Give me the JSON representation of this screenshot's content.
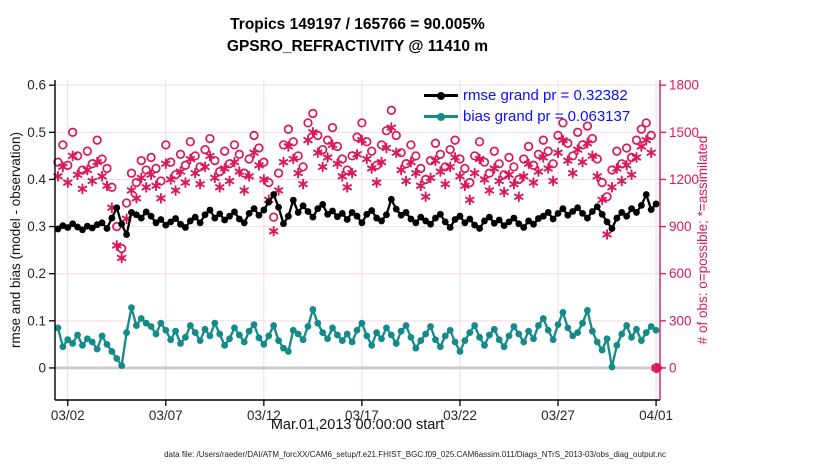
{
  "title": {
    "line1": "Tropics 149197 / 165766 = 90.005%",
    "line2": "GPSRO_REFRACTIVITY @ 11410 m"
  },
  "footer": "data file: /Users/raeder/DAI/ATM_forcXX/CAM6_setup/f.e21.FHIST_BGC.f09_025.CAM6assim.011/Diags_NTrS_2013-03/obs_diag_output.nc",
  "legend": [
    {
      "label": "rmse grand pr = 0.32382",
      "color": "#000000",
      "marker": "filled-circle"
    },
    {
      "label": "bias grand pr = 0.063137",
      "color": "#148a8a",
      "marker": "filled-circle"
    }
  ],
  "colors": {
    "crimson": "#d8195a",
    "teal": "#148a8a",
    "black": "#000000",
    "legend_text": "#0d0dff",
    "grid": "#f4d9e1",
    "zero_line": "#cfc8cb",
    "tick_text": "#262626"
  },
  "chart_data": {
    "type": "line",
    "title": "Tropics 149197 / 165766 = 90.005% | GPSRO_REFRACTIVITY @ 11410 m",
    "xlabel": "Mar.01,2013 00:00:00 start",
    "ylabel_left": "rmse and bias (model - observation)",
    "ylabel_right": "# of obs: o=possible; *=assimilated",
    "xlim": [
      1.35,
      32.2
    ],
    "ylim_left": [
      -0.068,
      0.611
    ],
    "ylim_right": [
      -204,
      1833
    ],
    "grid": true,
    "legend_position": "top-right-inside",
    "xticks": {
      "values": [
        2,
        7,
        12,
        17,
        22,
        27,
        32
      ],
      "labels": [
        "03/02",
        "03/07",
        "03/12",
        "03/17",
        "03/22",
        "03/27",
        "04/01"
      ]
    },
    "yticks_left": {
      "values": [
        0,
        0.1,
        0.2,
        0.3,
        0.4,
        0.5,
        0.6
      ],
      "labels": [
        "0",
        "0.1",
        "0.2",
        "0.3",
        "0.4",
        "0.5",
        "0.6"
      ]
    },
    "yticks_right": {
      "values": [
        0,
        300,
        600,
        900,
        1200,
        1500,
        1800
      ],
      "labels": [
        "0",
        "300",
        "600",
        "900",
        "1200",
        "1500",
        "1800"
      ]
    },
    "x_start": 1.5,
    "x_step": 0.25,
    "x_units": "day of March 2013, 6-hourly bins",
    "zero_line": 0,
    "end_marker": {
      "x": 32.1,
      "value": 0,
      "axis": "right",
      "shape": "diamond",
      "color": "#d8195a"
    },
    "series": [
      {
        "name": "rmse",
        "axis": "left",
        "draw": "line",
        "marker": "filled-circle",
        "color": "#000000",
        "values": [
          0.295,
          0.302,
          0.298,
          0.306,
          0.299,
          0.293,
          0.301,
          0.297,
          0.304,
          0.308,
          0.296,
          0.318,
          0.34,
          0.305,
          0.283,
          0.33,
          0.325,
          0.318,
          0.331,
          0.322,
          0.308,
          0.315,
          0.303,
          0.31,
          0.317,
          0.305,
          0.298,
          0.312,
          0.32,
          0.308,
          0.325,
          0.335,
          0.318,
          0.327,
          0.314,
          0.322,
          0.331,
          0.316,
          0.308,
          0.328,
          0.338,
          0.324,
          0.335,
          0.352,
          0.368,
          0.341,
          0.306,
          0.322,
          0.356,
          0.33,
          0.344,
          0.332,
          0.32,
          0.338,
          0.347,
          0.326,
          0.333,
          0.321,
          0.328,
          0.315,
          0.33,
          0.322,
          0.308,
          0.326,
          0.334,
          0.318,
          0.312,
          0.325,
          0.358,
          0.337,
          0.324,
          0.33,
          0.316,
          0.308,
          0.32,
          0.312,
          0.305,
          0.318,
          0.326,
          0.31,
          0.298,
          0.315,
          0.322,
          0.308,
          0.316,
          0.303,
          0.296,
          0.312,
          0.32,
          0.307,
          0.314,
          0.302,
          0.31,
          0.318,
          0.306,
          0.298,
          0.312,
          0.305,
          0.317,
          0.322,
          0.33,
          0.316,
          0.328,
          0.338,
          0.324,
          0.332,
          0.34,
          0.328,
          0.318,
          0.332,
          0.342,
          0.326,
          0.31,
          0.296,
          0.318,
          0.33,
          0.322,
          0.338,
          0.33,
          0.345,
          0.368,
          0.336,
          0.348
        ]
      },
      {
        "name": "bias",
        "axis": "left",
        "draw": "line",
        "marker": "filled-circle",
        "color": "#148a8a",
        "values": [
          0.085,
          0.045,
          0.06,
          0.052,
          0.07,
          0.048,
          0.062,
          0.055,
          0.04,
          0.068,
          0.05,
          0.035,
          0.02,
          0.005,
          0.075,
          0.128,
          0.09,
          0.105,
          0.095,
          0.088,
          0.072,
          0.095,
          0.08,
          0.06,
          0.078,
          0.052,
          0.065,
          0.09,
          0.075,
          0.058,
          0.082,
          0.068,
          0.095,
          0.072,
          0.048,
          0.062,
          0.085,
          0.07,
          0.055,
          0.078,
          0.092,
          0.064,
          0.05,
          0.068,
          0.09,
          0.058,
          0.042,
          0.035,
          0.08,
          0.072,
          0.06,
          0.088,
          0.124,
          0.095,
          0.075,
          0.062,
          0.085,
          0.07,
          0.058,
          0.072,
          0.055,
          0.08,
          0.095,
          0.068,
          0.048,
          0.075,
          0.062,
          0.085,
          0.07,
          0.052,
          0.078,
          0.09,
          0.065,
          0.042,
          0.058,
          0.072,
          0.088,
          0.06,
          0.045,
          0.068,
          0.08,
          0.055,
          0.035,
          0.058,
          0.075,
          0.09,
          0.065,
          0.048,
          0.07,
          0.082,
          0.06,
          0.045,
          0.068,
          0.088,
          0.072,
          0.055,
          0.078,
          0.062,
          0.09,
          0.105,
          0.08,
          0.06,
          0.092,
          0.118,
          0.085,
          0.068,
          0.075,
          0.095,
          0.122,
          0.078,
          0.055,
          0.038,
          0.062,
          0.002,
          0.048,
          0.072,
          0.09,
          0.065,
          0.082,
          0.058,
          0.075,
          0.088,
          0.08
        ]
      },
      {
        "name": "N possible",
        "axis": "right",
        "draw": "scatter",
        "marker": "open-circle",
        "color": "#d8195a",
        "values": [
          1310,
          1420,
          1290,
          1500,
          1350,
          1260,
          1380,
          1300,
          1450,
          1330,
          1270,
          1150,
          900,
          760,
          1050,
          1240,
          1180,
          1320,
          1260,
          1340,
          1270,
          1190,
          1420,
          1310,
          1230,
          1360,
          1290,
          1440,
          1350,
          1280,
          1390,
          1460,
          1320,
          1250,
          1380,
          1300,
          1420,
          1360,
          1240,
          1330,
          1480,
          1400,
          1310,
          1180,
          960,
          1240,
          1420,
          1520,
          1440,
          1350,
          1280,
          1560,
          1620,
          1480,
          1390,
          1450,
          1530,
          1410,
          1330,
          1260,
          1350,
          1470,
          1560,
          1440,
          1380,
          1290,
          1420,
          1510,
          1640,
          1480,
          1370,
          1300,
          1420,
          1350,
          1270,
          1200,
          1320,
          1430,
          1360,
          1280,
          1390,
          1450,
          1330,
          1270,
          1180,
          1350,
          1440,
          1310,
          1240,
          1380,
          1300,
          1230,
          1340,
          1280,
          1200,
          1330,
          1410,
          1290,
          1360,
          1450,
          1380,
          1300,
          1480,
          1560,
          1430,
          1350,
          1500,
          1420,
          1540,
          1460,
          1330,
          1180,
          1090,
          1260,
          1380,
          1300,
          1400,
          1340,
          1450,
          1520,
          1560,
          1480,
          0
        ]
      },
      {
        "name": "N assimilated",
        "axis": "right",
        "draw": "scatter",
        "marker": "asterisk",
        "color": "#d8195a",
        "values": [
          1220,
          1280,
          1180,
          1350,
          1230,
          1140,
          1260,
          1190,
          1310,
          1220,
          1160,
          1020,
          780,
          700,
          950,
          1130,
          1080,
          1210,
          1150,
          1230,
          1160,
          1080,
          1300,
          1200,
          1130,
          1250,
          1180,
          1330,
          1240,
          1170,
          1280,
          1350,
          1210,
          1150,
          1270,
          1190,
          1310,
          1250,
          1130,
          1220,
          1370,
          1290,
          1200,
          1070,
          870,
          1130,
          1310,
          1410,
          1330,
          1240,
          1170,
          1450,
          1500,
          1370,
          1280,
          1340,
          1420,
          1300,
          1220,
          1150,
          1240,
          1360,
          1450,
          1330,
          1270,
          1180,
          1310,
          1400,
          1530,
          1370,
          1260,
          1190,
          1310,
          1240,
          1160,
          1090,
          1210,
          1320,
          1250,
          1170,
          1280,
          1340,
          1220,
          1160,
          1070,
          1240,
          1330,
          1200,
          1130,
          1270,
          1190,
          1120,
          1230,
          1170,
          1090,
          1220,
          1300,
          1180,
          1250,
          1340,
          1270,
          1190,
          1370,
          1450,
          1320,
          1240,
          1390,
          1310,
          1430,
          1350,
          1220,
          1070,
          850,
          1150,
          1270,
          1190,
          1290,
          1230,
          1340,
          1410,
          1450,
          1370,
          0
        ]
      }
    ]
  }
}
